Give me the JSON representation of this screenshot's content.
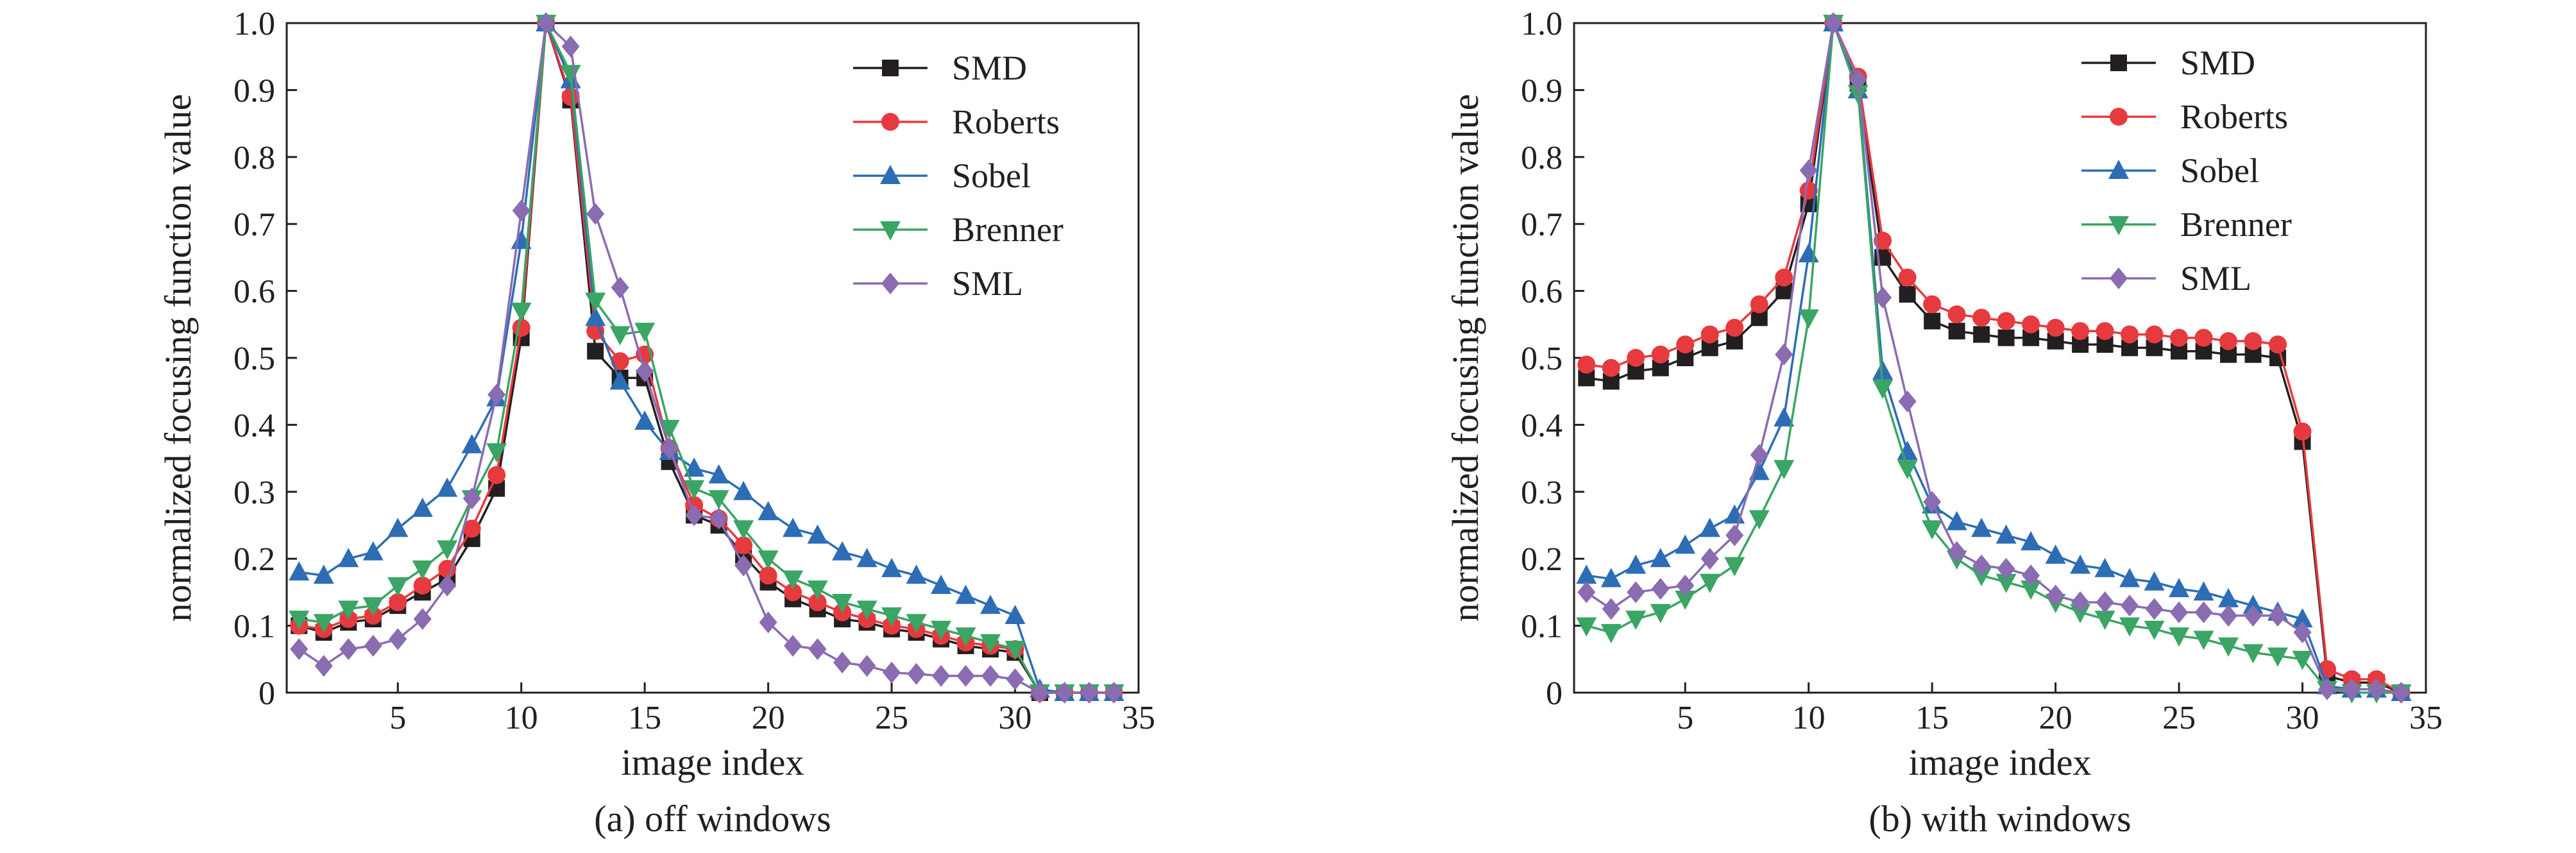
{
  "chart_data": [
    {
      "type": "line",
      "caption": "(a) off windows",
      "xlabel": "image index",
      "ylabel": "normalized focusing function value",
      "xlim": [
        0.5,
        35
      ],
      "ylim": [
        0,
        1.0
      ],
      "xticks": [
        5,
        10,
        15,
        20,
        25,
        30,
        35
      ],
      "yticks": [
        0,
        0.1,
        0.2,
        0.3,
        0.4,
        0.5,
        0.6,
        0.7,
        0.8,
        0.9,
        1.0
      ],
      "ytick_labels": [
        "0",
        "0.1",
        "0.2",
        "0.3",
        "0.4",
        "0.5",
        "0.6",
        "0.7",
        "0.8",
        "0.9",
        "1.0"
      ],
      "legend_position": "top-right",
      "x": [
        1,
        2,
        3,
        4,
        5,
        6,
        7,
        8,
        9,
        10,
        11,
        12,
        13,
        14,
        15,
        16,
        17,
        18,
        19,
        20,
        21,
        22,
        23,
        24,
        25,
        26,
        27,
        28,
        29,
        30,
        31,
        32,
        33,
        34
      ],
      "series": [
        {
          "name": "SMD",
          "color": "#231f20",
          "marker": "square",
          "values": [
            0.1,
            0.09,
            0.105,
            0.11,
            0.13,
            0.15,
            0.17,
            0.23,
            0.305,
            0.53,
            1.0,
            0.885,
            0.51,
            0.47,
            0.47,
            0.345,
            0.265,
            0.25,
            0.205,
            0.165,
            0.14,
            0.125,
            0.11,
            0.105,
            0.095,
            0.09,
            0.08,
            0.07,
            0.065,
            0.06,
            0.0,
            0.0,
            0.0,
            0.0
          ]
        },
        {
          "name": "Roberts",
          "color": "#e63a3e",
          "marker": "circle",
          "values": [
            0.1,
            0.095,
            0.11,
            0.115,
            0.135,
            0.16,
            0.185,
            0.245,
            0.325,
            0.545,
            1.0,
            0.89,
            0.54,
            0.495,
            0.505,
            0.365,
            0.28,
            0.26,
            0.22,
            0.175,
            0.15,
            0.135,
            0.12,
            0.11,
            0.1,
            0.095,
            0.085,
            0.075,
            0.07,
            0.065,
            0.0,
            0.0,
            0.0,
            0.0
          ]
        },
        {
          "name": "Sobel",
          "color": "#2d6db5",
          "marker": "triangle-up",
          "values": [
            0.18,
            0.175,
            0.2,
            0.21,
            0.245,
            0.275,
            0.305,
            0.37,
            0.44,
            0.675,
            1.0,
            0.915,
            0.56,
            0.465,
            0.405,
            0.36,
            0.335,
            0.325,
            0.3,
            0.27,
            0.245,
            0.235,
            0.21,
            0.2,
            0.185,
            0.175,
            0.16,
            0.145,
            0.13,
            0.115,
            0.005,
            0.0,
            0.0,
            0.0
          ]
        },
        {
          "name": "Brenner",
          "color": "#3aa564",
          "marker": "triangle-down",
          "values": [
            0.11,
            0.105,
            0.125,
            0.13,
            0.16,
            0.185,
            0.215,
            0.29,
            0.36,
            0.57,
            1.0,
            0.925,
            0.585,
            0.535,
            0.54,
            0.395,
            0.305,
            0.29,
            0.245,
            0.2,
            0.17,
            0.155,
            0.135,
            0.125,
            0.115,
            0.105,
            0.095,
            0.085,
            0.075,
            0.065,
            0.0,
            0.0,
            0.0,
            0.0
          ]
        },
        {
          "name": "SML",
          "color": "#8b6bb1",
          "marker": "diamond",
          "values": [
            0.065,
            0.04,
            0.065,
            0.07,
            0.08,
            0.11,
            0.16,
            0.29,
            0.445,
            0.72,
            1.0,
            0.965,
            0.715,
            0.605,
            0.48,
            0.365,
            0.265,
            0.26,
            0.19,
            0.105,
            0.07,
            0.065,
            0.045,
            0.04,
            0.03,
            0.028,
            0.025,
            0.025,
            0.025,
            0.02,
            0.0,
            0.0,
            0.0,
            0.0
          ]
        }
      ]
    },
    {
      "type": "line",
      "caption": "(b) with windows",
      "xlabel": "image index",
      "ylabel": "normalized focusing function value",
      "xlim": [
        0.5,
        35
      ],
      "ylim": [
        0,
        1.0
      ],
      "xticks": [
        5,
        10,
        15,
        20,
        25,
        30,
        35
      ],
      "yticks": [
        0,
        0.1,
        0.2,
        0.3,
        0.4,
        0.5,
        0.6,
        0.7,
        0.8,
        0.9,
        1.0
      ],
      "ytick_labels": [
        "0",
        "0.1",
        "0.2",
        "0.3",
        "0.4",
        "0.5",
        "0.6",
        "0.7",
        "0.8",
        "0.9",
        "1.0"
      ],
      "legend_position": "top-right",
      "x": [
        1,
        2,
        3,
        4,
        5,
        6,
        7,
        8,
        9,
        10,
        11,
        12,
        13,
        14,
        15,
        16,
        17,
        18,
        19,
        20,
        21,
        22,
        23,
        24,
        25,
        26,
        27,
        28,
        29,
        30,
        31,
        32,
        33,
        34
      ],
      "series": [
        {
          "name": "SMD",
          "color": "#231f20",
          "marker": "square",
          "values": [
            0.47,
            0.465,
            0.48,
            0.485,
            0.5,
            0.515,
            0.525,
            0.56,
            0.6,
            0.73,
            1.0,
            0.91,
            0.65,
            0.595,
            0.555,
            0.54,
            0.535,
            0.53,
            0.53,
            0.525,
            0.52,
            0.52,
            0.515,
            0.515,
            0.51,
            0.51,
            0.505,
            0.505,
            0.5,
            0.375,
            0.025,
            0.015,
            0.015,
            0.0
          ]
        },
        {
          "name": "Roberts",
          "color": "#e63a3e",
          "marker": "circle",
          "values": [
            0.49,
            0.485,
            0.5,
            0.505,
            0.52,
            0.535,
            0.545,
            0.58,
            0.62,
            0.75,
            1.0,
            0.92,
            0.675,
            0.62,
            0.58,
            0.565,
            0.56,
            0.555,
            0.55,
            0.545,
            0.54,
            0.54,
            0.535,
            0.535,
            0.53,
            0.53,
            0.525,
            0.525,
            0.52,
            0.39,
            0.035,
            0.02,
            0.02,
            0.0
          ]
        },
        {
          "name": "Sobel",
          "color": "#2d6db5",
          "marker": "triangle-up",
          "values": [
            0.175,
            0.17,
            0.19,
            0.2,
            0.22,
            0.245,
            0.265,
            0.33,
            0.41,
            0.655,
            1.0,
            0.9,
            0.48,
            0.36,
            0.28,
            0.255,
            0.245,
            0.235,
            0.225,
            0.205,
            0.19,
            0.185,
            0.17,
            0.165,
            0.155,
            0.15,
            0.14,
            0.13,
            0.12,
            0.11,
            0.01,
            0.005,
            0.005,
            0.0
          ]
        },
        {
          "name": "Brenner",
          "color": "#3aa564",
          "marker": "triangle-down",
          "values": [
            0.1,
            0.09,
            0.11,
            0.12,
            0.14,
            0.165,
            0.19,
            0.26,
            0.335,
            0.56,
            1.0,
            0.895,
            0.455,
            0.335,
            0.245,
            0.2,
            0.175,
            0.165,
            0.155,
            0.135,
            0.12,
            0.11,
            0.1,
            0.095,
            0.085,
            0.08,
            0.07,
            0.06,
            0.055,
            0.05,
            0.005,
            0.0,
            0.0,
            0.0
          ]
        },
        {
          "name": "SML",
          "color": "#8b6bb1",
          "marker": "diamond",
          "values": [
            0.15,
            0.125,
            0.15,
            0.155,
            0.16,
            0.2,
            0.235,
            0.355,
            0.505,
            0.78,
            1.0,
            0.915,
            0.59,
            0.435,
            0.285,
            0.21,
            0.19,
            0.185,
            0.175,
            0.145,
            0.135,
            0.135,
            0.13,
            0.125,
            0.12,
            0.12,
            0.115,
            0.115,
            0.115,
            0.09,
            0.005,
            0.005,
            0.005,
            0.0
          ]
        }
      ]
    }
  ]
}
